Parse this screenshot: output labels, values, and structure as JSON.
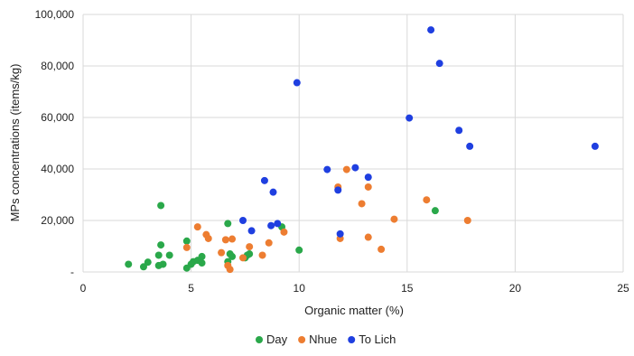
{
  "chart_data": {
    "type": "scatter",
    "title": "",
    "xlabel": "Organic matter (%)",
    "ylabel": "MPs concentrations (items/kg)",
    "xlim": [
      0,
      25
    ],
    "ylim": [
      0,
      100000
    ],
    "x_ticks": [
      0,
      5,
      10,
      15,
      20,
      25
    ],
    "y_ticks": [
      0,
      20000,
      40000,
      60000,
      80000,
      100000
    ],
    "x_tick_labels": [
      "0",
      "5",
      "10",
      "15",
      "20",
      "25"
    ],
    "y_tick_labels": [
      "-",
      "20,000",
      "40,000",
      "60,000",
      "80,000",
      "100,000"
    ],
    "grid": "vertical and horizontal major gridlines",
    "legend_position": "bottom-center",
    "series": [
      {
        "name": "Day",
        "color": "#2aa84a",
        "points": [
          [
            2.1,
            3000
          ],
          [
            2.8,
            2000
          ],
          [
            3.0,
            3800
          ],
          [
            3.5,
            6500
          ],
          [
            3.5,
            2500
          ],
          [
            3.6,
            25800
          ],
          [
            3.6,
            10500
          ],
          [
            3.7,
            3000
          ],
          [
            4.0,
            6500
          ],
          [
            4.8,
            12000
          ],
          [
            4.8,
            1500
          ],
          [
            5.0,
            3000
          ],
          [
            5.1,
            4000
          ],
          [
            5.3,
            4500
          ],
          [
            5.5,
            6000
          ],
          [
            5.5,
            3500
          ],
          [
            6.7,
            18800
          ],
          [
            6.7,
            4000
          ],
          [
            6.8,
            7000
          ],
          [
            6.9,
            6000
          ],
          [
            7.5,
            5500
          ],
          [
            7.6,
            6500
          ],
          [
            7.7,
            7000
          ],
          [
            9.2,
            17500
          ],
          [
            10.0,
            8500
          ],
          [
            16.3,
            23800
          ]
        ]
      },
      {
        "name": "Nhue",
        "color": "#ed7d31",
        "points": [
          [
            4.8,
            9500
          ],
          [
            5.3,
            17500
          ],
          [
            5.7,
            14500
          ],
          [
            5.8,
            13000
          ],
          [
            6.4,
            7500
          ],
          [
            6.6,
            12500
          ],
          [
            6.7,
            2500
          ],
          [
            6.8,
            1000
          ],
          [
            6.9,
            12800
          ],
          [
            7.4,
            5500
          ],
          [
            7.7,
            9800
          ],
          [
            8.3,
            6500
          ],
          [
            8.6,
            11300
          ],
          [
            9.3,
            15500
          ],
          [
            11.8,
            33000
          ],
          [
            11.9,
            13000
          ],
          [
            12.2,
            39800
          ],
          [
            12.9,
            26500
          ],
          [
            13.2,
            13500
          ],
          [
            13.2,
            33000
          ],
          [
            13.8,
            8800
          ],
          [
            14.4,
            20500
          ],
          [
            15.9,
            28000
          ],
          [
            17.8,
            20000
          ]
        ]
      },
      {
        "name": "To Lich",
        "color": "#1f3fe0",
        "points": [
          [
            7.4,
            20000
          ],
          [
            7.8,
            16000
          ],
          [
            8.4,
            35500
          ],
          [
            8.7,
            18000
          ],
          [
            8.8,
            31000
          ],
          [
            9.0,
            18800
          ],
          [
            9.9,
            73500
          ],
          [
            11.3,
            39800
          ],
          [
            11.8,
            31800
          ],
          [
            11.9,
            14800
          ],
          [
            12.6,
            40500
          ],
          [
            13.2,
            36800
          ],
          [
            15.1,
            59800
          ],
          [
            16.1,
            94000
          ],
          [
            16.5,
            81000
          ],
          [
            17.4,
            55000
          ],
          [
            17.9,
            48800
          ],
          [
            23.7,
            48800
          ]
        ]
      }
    ]
  }
}
